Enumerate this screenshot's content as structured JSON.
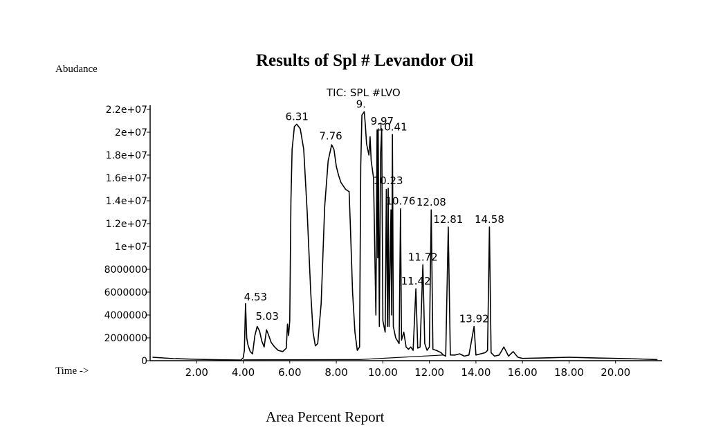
{
  "chart_data": {
    "type": "line",
    "title": "Results of Spl # Levandor Oil",
    "subtitle": "TIC: SPL #LVO",
    "ylabel": "Abudance",
    "xlabel": "Time ->",
    "footer": "Area Percent Report",
    "xlim": [
      0,
      22
    ],
    "ylim": [
      0,
      22000000
    ],
    "x_ticks": [
      "2.00",
      "4.00",
      "6.00",
      "8.00",
      "10.00",
      "12.00",
      "14.00",
      "16.00",
      "18.00",
      "20.00"
    ],
    "y_ticks": [
      "0",
      "2000000",
      "4000000",
      "6000000",
      "8000000",
      "1e+07",
      "1.2e+07",
      "1.4e+07",
      "1.6e+07",
      "1.8e+07",
      "2e+07",
      "2.2e+07"
    ],
    "peaks": [
      {
        "rt": 4.53,
        "label": "4.53",
        "height": 4900000
      },
      {
        "rt": 5.03,
        "label": "5.03",
        "height": 3200000
      },
      {
        "rt": 6.31,
        "label": "6.31",
        "height": 20700000
      },
      {
        "rt": 7.76,
        "label": "7.76",
        "height": 19000000
      },
      {
        "rt": 9.06,
        "label": "9.",
        "height": 21800000
      },
      {
        "rt": 9.97,
        "label": "9.97",
        "height": 20300000
      },
      {
        "rt": 10.41,
        "label": "10.41",
        "height": 19800000
      },
      {
        "rt": 10.23,
        "label": "10.23",
        "height": 15100000
      },
      {
        "rt": 10.76,
        "label": "10.76",
        "height": 13300000
      },
      {
        "rt": 12.08,
        "label": "12.08",
        "height": 13200000
      },
      {
        "rt": 12.81,
        "label": "12.81",
        "height": 11700000
      },
      {
        "rt": 14.58,
        "label": "14.58",
        "height": 11700000
      },
      {
        "rt": 11.72,
        "label": "11.72",
        "height": 8400000
      },
      {
        "rt": 11.42,
        "label": "11.42",
        "height": 6300000
      },
      {
        "rt": 13.92,
        "label": "13.92",
        "height": 3000000
      }
    ],
    "trace": [
      [
        0.1,
        300000
      ],
      [
        1.0,
        180000
      ],
      [
        2.0,
        120000
      ],
      [
        3.0,
        80000
      ],
      [
        3.9,
        60000
      ],
      [
        4.0,
        250000
      ],
      [
        4.05,
        900000
      ],
      [
        4.1,
        5000000
      ],
      [
        4.15,
        2000000
      ],
      [
        4.2,
        1400000
      ],
      [
        4.3,
        800000
      ],
      [
        4.4,
        600000
      ],
      [
        4.5,
        2200000
      ],
      [
        4.6,
        3000000
      ],
      [
        4.7,
        2600000
      ],
      [
        4.8,
        1700000
      ],
      [
        4.9,
        1200000
      ],
      [
        5.0,
        2700000
      ],
      [
        5.1,
        2200000
      ],
      [
        5.2,
        1600000
      ],
      [
        5.35,
        1200000
      ],
      [
        5.5,
        900000
      ],
      [
        5.7,
        800000
      ],
      [
        5.85,
        1100000
      ],
      [
        5.9,
        3200000
      ],
      [
        5.95,
        2200000
      ],
      [
        6.0,
        3500000
      ],
      [
        6.05,
        14000000
      ],
      [
        6.1,
        18500000
      ],
      [
        6.2,
        20500000
      ],
      [
        6.3,
        20700000
      ],
      [
        6.45,
        20300000
      ],
      [
        6.6,
        18500000
      ],
      [
        6.75,
        13000000
      ],
      [
        6.9,
        6000000
      ],
      [
        7.0,
        2500000
      ],
      [
        7.1,
        1300000
      ],
      [
        7.2,
        1500000
      ],
      [
        7.35,
        5000000
      ],
      [
        7.5,
        13500000
      ],
      [
        7.65,
        17500000
      ],
      [
        7.8,
        18900000
      ],
      [
        7.9,
        18500000
      ],
      [
        8.0,
        17000000
      ],
      [
        8.1,
        16200000
      ],
      [
        8.2,
        15600000
      ],
      [
        8.4,
        15000000
      ],
      [
        8.55,
        14800000
      ],
      [
        8.6,
        12000000
      ],
      [
        8.7,
        6000000
      ],
      [
        8.8,
        2500000
      ],
      [
        8.9,
        900000
      ],
      [
        9.0,
        1200000
      ],
      [
        9.05,
        17000000
      ],
      [
        9.1,
        21500000
      ],
      [
        9.2,
        21800000
      ],
      [
        9.25,
        20600000
      ],
      [
        9.3,
        19000000
      ],
      [
        9.4,
        18000000
      ],
      [
        9.45,
        19600000
      ],
      [
        9.5,
        17500000
      ],
      [
        9.6,
        16000000
      ],
      [
        9.7,
        4000000
      ],
      [
        9.75,
        20200000
      ],
      [
        9.78,
        9000000
      ],
      [
        9.8,
        20300000
      ],
      [
        9.85,
        3000000
      ],
      [
        9.9,
        18000000
      ],
      [
        9.95,
        20300000
      ],
      [
        10.0,
        3500000
      ],
      [
        10.1,
        2500000
      ],
      [
        10.15,
        15000000
      ],
      [
        10.2,
        3000000
      ],
      [
        10.23,
        15100000
      ],
      [
        10.27,
        3000000
      ],
      [
        10.35,
        13200000
      ],
      [
        10.38,
        4000000
      ],
      [
        10.41,
        19800000
      ],
      [
        10.45,
        3000000
      ],
      [
        10.55,
        2000000
      ],
      [
        10.7,
        1500000
      ],
      [
        10.76,
        13300000
      ],
      [
        10.8,
        1800000
      ],
      [
        10.9,
        2500000
      ],
      [
        11.0,
        1200000
      ],
      [
        11.1,
        1000000
      ],
      [
        11.2,
        1200000
      ],
      [
        11.3,
        900000
      ],
      [
        11.42,
        6300000
      ],
      [
        11.5,
        1100000
      ],
      [
        11.6,
        1200000
      ],
      [
        11.72,
        8400000
      ],
      [
        11.8,
        1500000
      ],
      [
        11.9,
        900000
      ],
      [
        12.0,
        1200000
      ],
      [
        12.08,
        13200000
      ],
      [
        12.15,
        1000000
      ],
      [
        12.3,
        900000
      ],
      [
        12.5,
        700000
      ],
      [
        12.6,
        500000
      ],
      [
        12.7,
        400000
      ],
      [
        12.81,
        11700000
      ],
      [
        12.9,
        500000
      ],
      [
        13.1,
        500000
      ],
      [
        13.3,
        600000
      ],
      [
        13.5,
        400000
      ],
      [
        13.7,
        500000
      ],
      [
        13.92,
        3000000
      ],
      [
        14.0,
        500000
      ],
      [
        14.2,
        600000
      ],
      [
        14.4,
        700000
      ],
      [
        14.5,
        900000
      ],
      [
        14.58,
        11700000
      ],
      [
        14.65,
        700000
      ],
      [
        14.8,
        400000
      ],
      [
        15.0,
        500000
      ],
      [
        15.2,
        1200000
      ],
      [
        15.4,
        400000
      ],
      [
        15.6,
        800000
      ],
      [
        15.8,
        300000
      ],
      [
        16.0,
        200000
      ],
      [
        17.0,
        250000
      ],
      [
        18.0,
        300000
      ],
      [
        19.0,
        250000
      ],
      [
        20.0,
        200000
      ],
      [
        21.0,
        150000
      ],
      [
        21.8,
        100000
      ]
    ],
    "baseline_trace": [
      [
        4.0,
        80000
      ],
      [
        8.6,
        100000
      ],
      [
        9.0,
        100000
      ],
      [
        12.6,
        500000
      ]
    ]
  }
}
